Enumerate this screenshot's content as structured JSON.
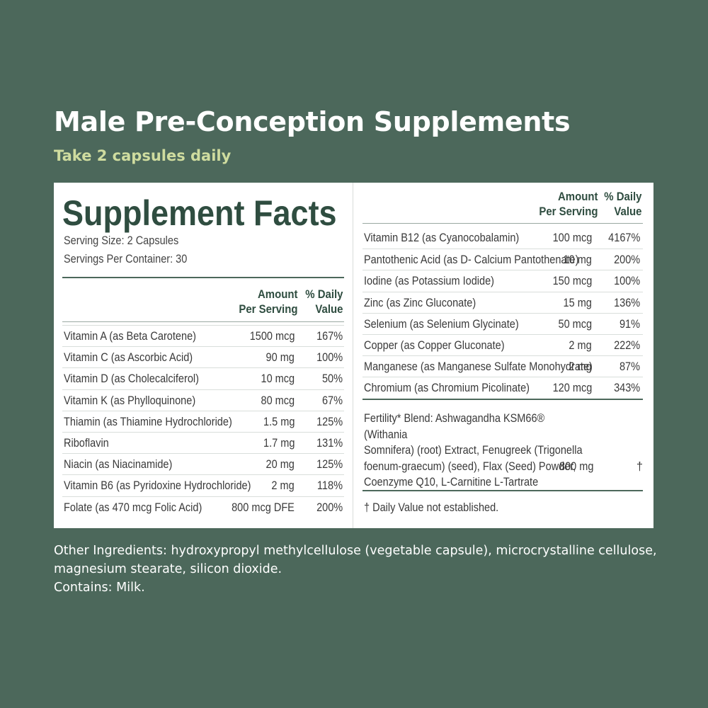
{
  "heading": {
    "title": "Male Pre-Conception Supplements",
    "subtitle": "Take 2 capsules daily"
  },
  "colors": {
    "background": "#4c685b",
    "accent_green": "#2f4d40",
    "subtitle_yellow": "#cfdc9f",
    "panel": "#ffffff"
  },
  "facts": {
    "title": "Supplement Facts",
    "serving_size": "Serving Size: 2 Capsules",
    "servings_per_container": "Servings Per Container: 30",
    "col_amount_line1": "Amount",
    "col_amount_line2": "Per Serving",
    "col_dv_line1": "% Daily",
    "col_dv_line2": "Value",
    "left_rows": [
      {
        "name": "Vitamin A (as Beta Carotene)",
        "amount": "1500 mcg",
        "dv": "167%"
      },
      {
        "name": "Vitamin C (as Ascorbic Acid)",
        "amount": "90 mg",
        "dv": "100%"
      },
      {
        "name": "Vitamin D (as Cholecalciferol)",
        "amount": "10 mcg",
        "dv": "50%"
      },
      {
        "name": "Vitamin K (as Phylloquinone)",
        "amount": "80 mcg",
        "dv": "67%"
      },
      {
        "name": "Thiamin (as Thiamine Hydrochloride)",
        "amount": "1.5 mg",
        "dv": "125%"
      },
      {
        "name": "Riboflavin",
        "amount": "1.7 mg",
        "dv": "131%"
      },
      {
        "name": "Niacin (as Niacinamide)",
        "amount": "20 mg",
        "dv": "125%"
      },
      {
        "name": "Vitamin B6 (as Pyridoxine Hydrochloride)",
        "amount": "2 mg",
        "dv": "118%"
      },
      {
        "name": "Folate (as 470 mcg Folic Acid)",
        "amount": "800 mcg DFE",
        "dv": "200%"
      }
    ],
    "right_rows": [
      {
        "name": "Vitamin B12 (as Cyanocobalamin)",
        "amount": "100 mcg",
        "dv": "4167%"
      },
      {
        "name": "Pantothenic Acid (as D- Calcium Pantothenate)",
        "amount": "10 mg",
        "dv": "200%"
      },
      {
        "name": "Iodine (as Potassium Iodide)",
        "amount": "150 mcg",
        "dv": "100%"
      },
      {
        "name": "Zinc (as Zinc Gluconate)",
        "amount": "15 mg",
        "dv": "136%"
      },
      {
        "name": "Selenium (as Selenium Glycinate)",
        "amount": "50 mcg",
        "dv": "91%"
      },
      {
        "name": "Copper (as Copper Gluconate)",
        "amount": "2 mg",
        "dv": "222%"
      },
      {
        "name": "Manganese (as Manganese Sulfate Monohydrate)",
        "amount": "2 mg",
        "dv": "87%"
      },
      {
        "name": "Chromium (as Chromium Picolinate)",
        "amount": "120 mcg",
        "dv": "343%"
      }
    ],
    "blend": {
      "text": "Fertility* Blend: Ashwagandha KSM66® (Withania\nSomnifera) (root) Extract, Fenugreek (Trigonella\nfoenum-graecum) (seed), Flax (Seed) Powder,\nCoenzyme Q10, L-Carnitine L-Tartrate",
      "amount": "800 mg",
      "dv": "†"
    },
    "footnote": "† Daily Value not established."
  },
  "other": {
    "ingredients": "Other Ingredients: hydroxypropyl methylcellulose (vegetable capsule), microcrystalline cellulose, magnesium stearate, silicon dioxide.",
    "contains": "Contains: Milk."
  }
}
